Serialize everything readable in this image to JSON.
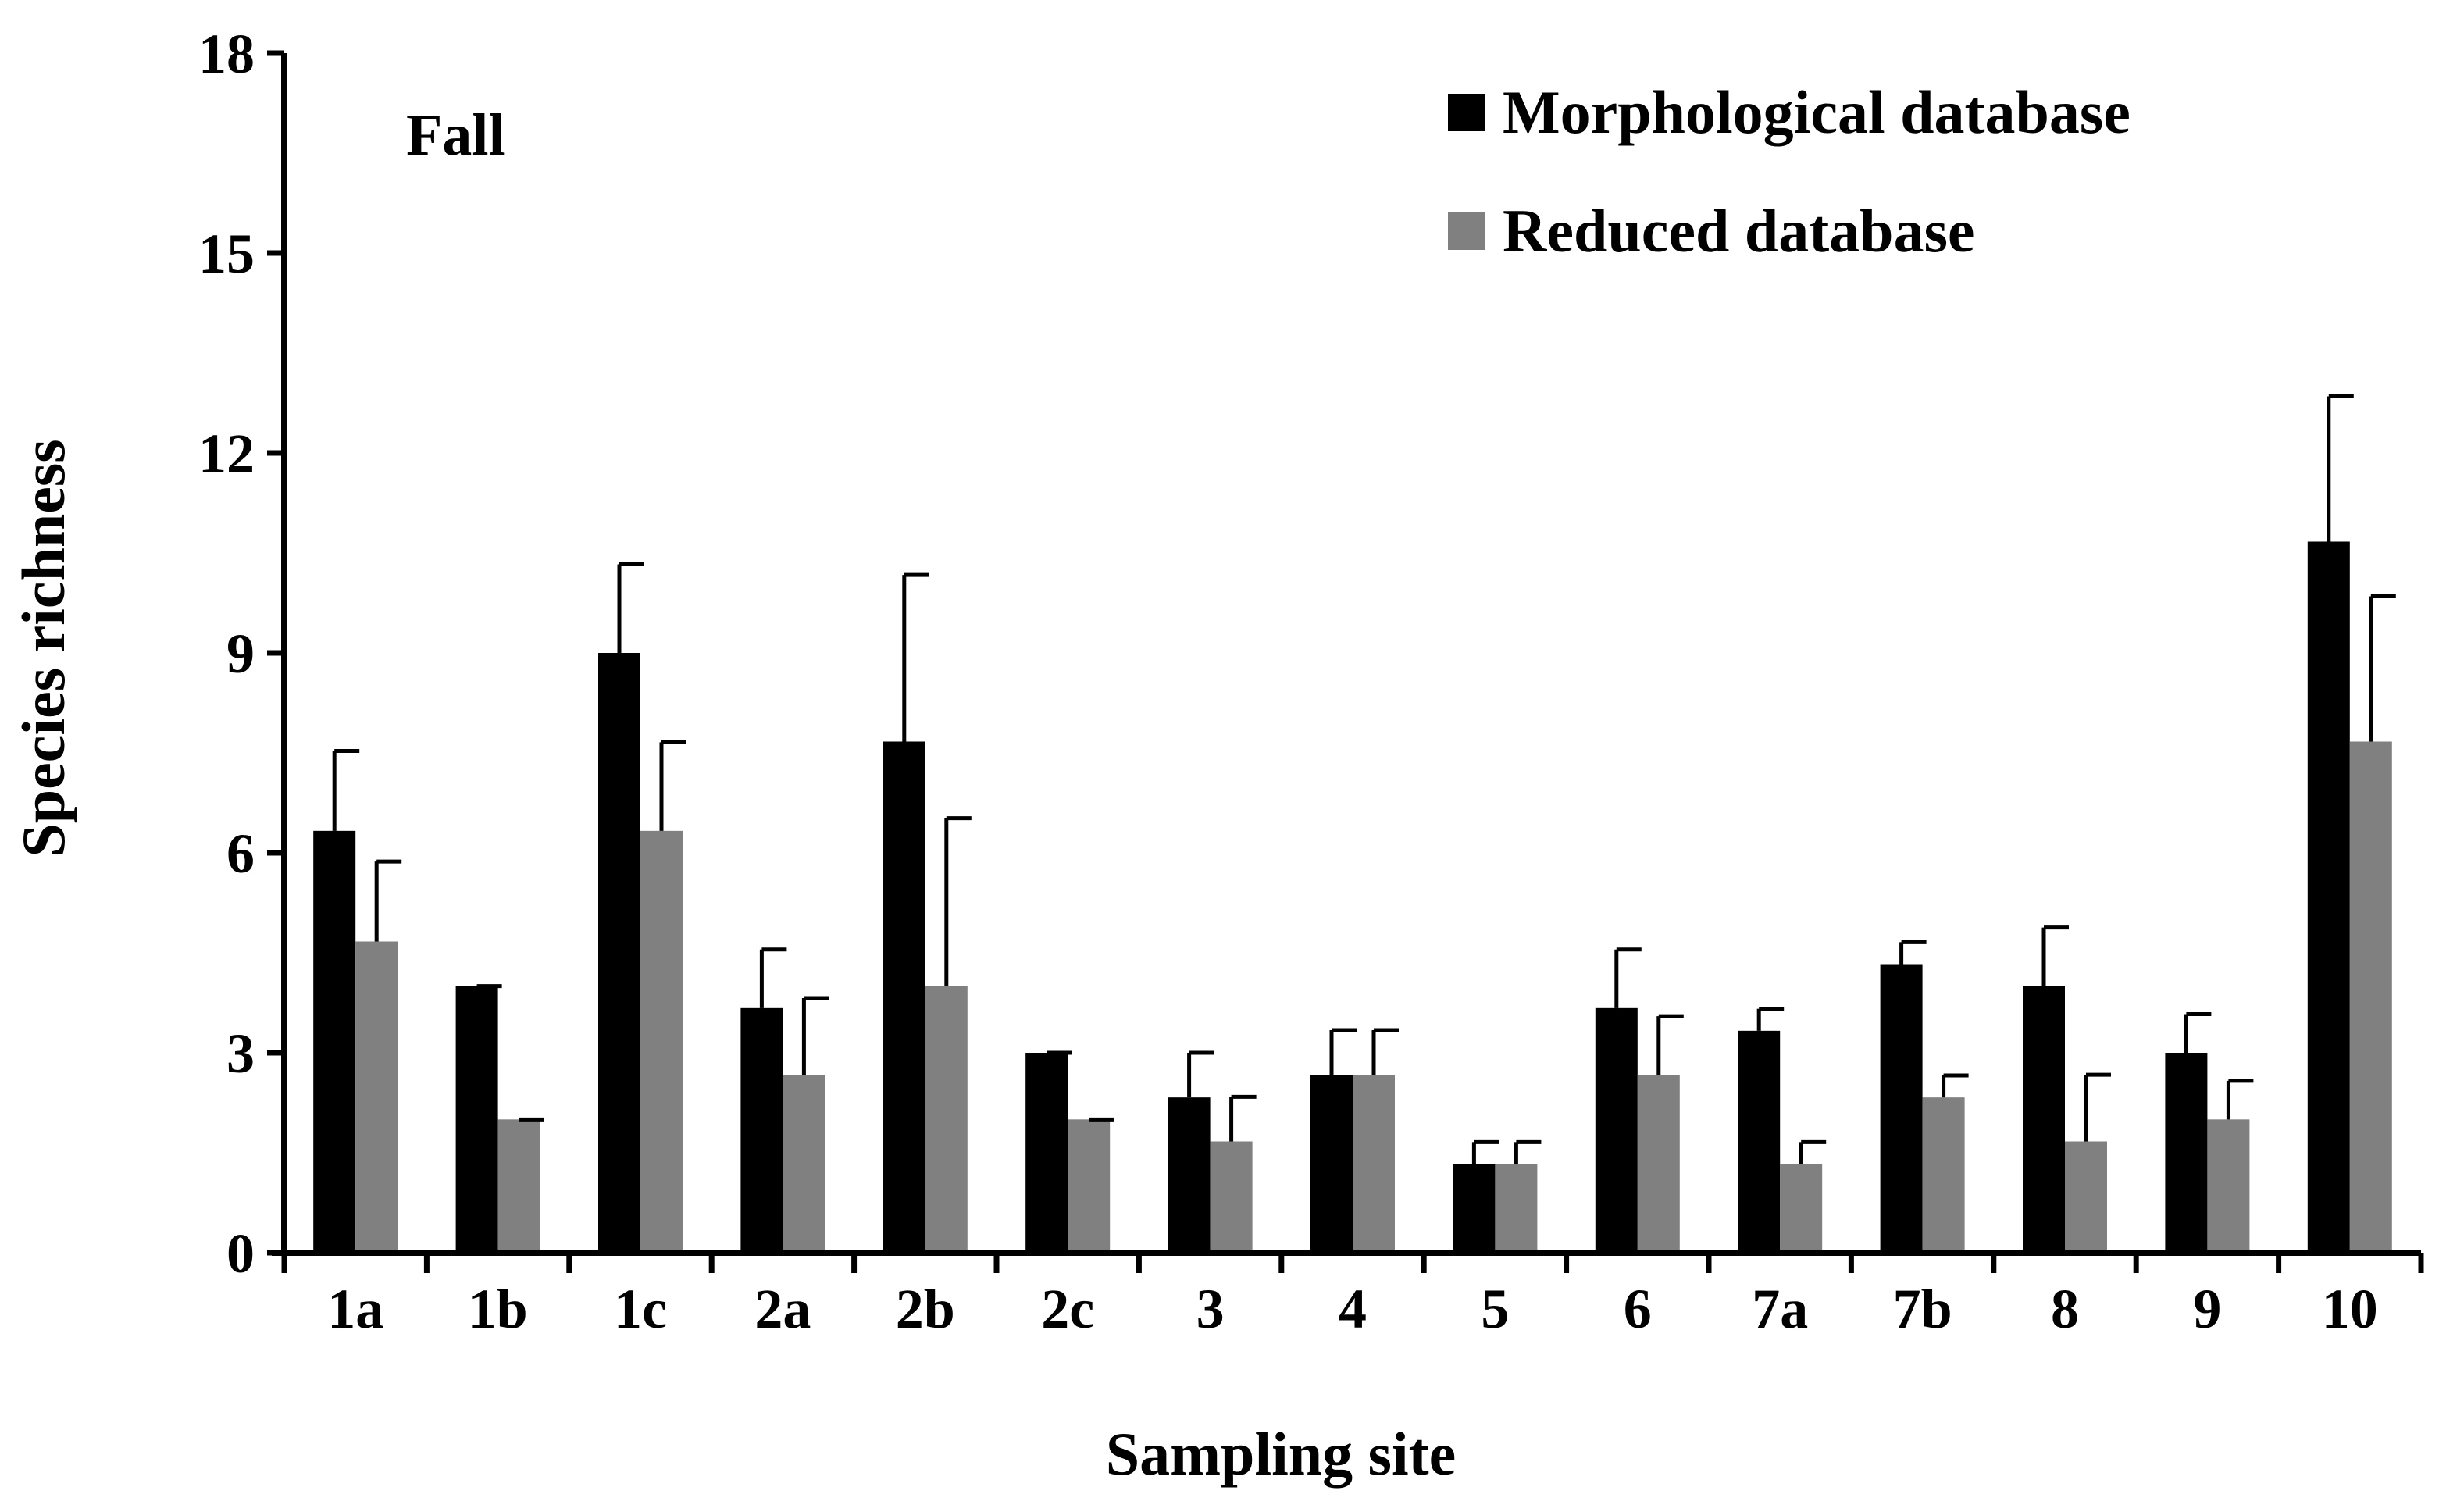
{
  "chart_data": {
    "type": "bar",
    "title": "",
    "panel_label": "Fall",
    "xlabel": "Sampling site",
    "ylabel": "Species richness",
    "ylim": [
      0,
      18
    ],
    "yticks": [
      "0",
      "3",
      "6",
      "9",
      "12",
      "15",
      "18"
    ],
    "categories": [
      "1a",
      "1b",
      "1c",
      "2a",
      "2b",
      "2c",
      "3",
      "4",
      "5",
      "6",
      "7a",
      "7b",
      "8",
      "9",
      "10"
    ],
    "series": [
      {
        "name": "Morphological database",
        "color": "#000000",
        "values": [
          6.33,
          4.0,
          9.0,
          3.67,
          7.67,
          3.0,
          2.33,
          2.67,
          1.33,
          3.67,
          3.33,
          4.33,
          4.0,
          3.0,
          10.67
        ],
        "errors": [
          1.2,
          0.0,
          1.33,
          0.88,
          2.5,
          0.0,
          0.67,
          0.67,
          0.33,
          0.88,
          0.33,
          0.33,
          0.88,
          0.58,
          2.18
        ]
      },
      {
        "name": "Reduced database",
        "color": "#808080",
        "values": [
          4.67,
          2.0,
          6.33,
          2.67,
          4.0,
          2.0,
          1.67,
          2.67,
          1.33,
          2.67,
          1.33,
          2.33,
          1.67,
          2.0,
          7.67
        ],
        "errors": [
          1.2,
          0.0,
          1.33,
          1.15,
          2.52,
          0.0,
          0.67,
          0.67,
          0.33,
          0.88,
          0.33,
          0.33,
          1.0,
          0.58,
          2.18
        ]
      }
    ],
    "legend_position": "top-right",
    "grid": false
  }
}
